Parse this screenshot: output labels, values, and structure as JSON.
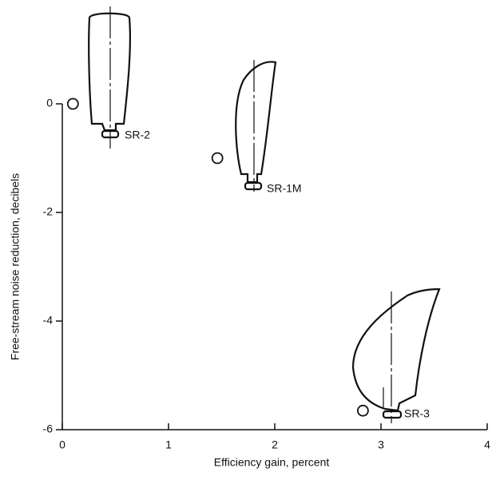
{
  "chart_data": {
    "type": "scatter",
    "x_label": "Efficiency gain, percent",
    "y_label": "Free-stream noise reduction, decibels",
    "x": [
      0.1,
      1.46,
      2.83
    ],
    "values": [
      0,
      -1.0,
      -5.65
    ],
    "point_labels": [
      "SR-2",
      "SR-1M",
      "SR-3"
    ],
    "color": "#111111",
    "xlim": [
      0,
      4
    ],
    "xticks": [
      0,
      1,
      2,
      3,
      4
    ],
    "ylim": [
      -6,
      0
    ],
    "yticks": [
      0,
      -2,
      -4,
      -6
    ]
  }
}
